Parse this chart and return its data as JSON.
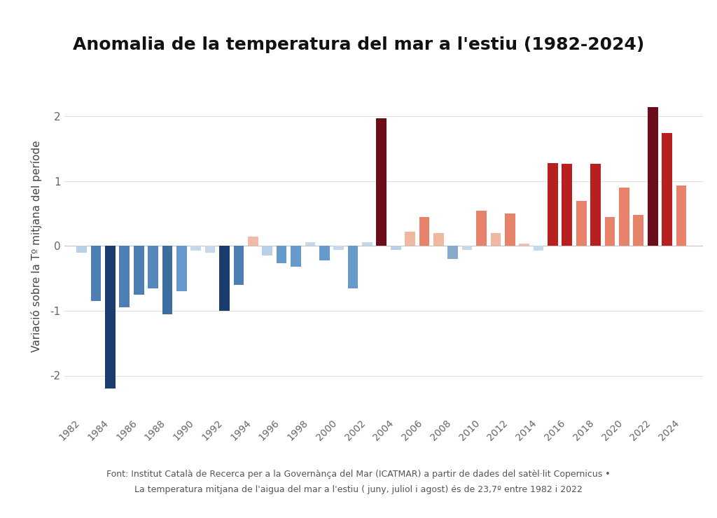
{
  "title": "Anomalia de la temperatura del mar a l'estiu (1982-2024)",
  "ylabel": "Variació sobre la Tº mitjana del període",
  "footnote1": "Font: Institut Català de Recerca per a la Governànça del Mar (ICATMAR) a partir de dades del satèl·lit Copernicus •",
  "footnote2": "La temperatura mitjana de l'aigua del mar a l'estiu ( juny, juliol i agost) és de 23,7º entre 1982 i 2022",
  "years": [
    1982,
    1983,
    1984,
    1985,
    1986,
    1987,
    1988,
    1989,
    1990,
    1991,
    1992,
    1993,
    1994,
    1995,
    1996,
    1997,
    1998,
    1999,
    2000,
    2001,
    2002,
    2003,
    2004,
    2005,
    2006,
    2007,
    2008,
    2009,
    2010,
    2011,
    2012,
    2013,
    2014,
    2015,
    2016,
    2017,
    2018,
    2019,
    2020,
    2021,
    2022,
    2023,
    2024
  ],
  "values": [
    -0.1,
    -0.85,
    -2.2,
    -0.95,
    -0.75,
    -0.65,
    -1.05,
    -0.7,
    -0.07,
    -0.1,
    -1.0,
    -0.6,
    0.15,
    -0.15,
    -0.27,
    -0.32,
    0.06,
    -0.22,
    -0.06,
    -0.65,
    0.06,
    1.97,
    -0.06,
    0.22,
    0.45,
    0.2,
    -0.2,
    -0.06,
    0.55,
    0.2,
    0.5,
    0.04,
    -0.07,
    1.28,
    1.27,
    0.7,
    1.27,
    0.45,
    0.9,
    0.48,
    2.15,
    1.75,
    0.93
  ],
  "colors": [
    "#b8d0e8",
    "#4d7fb5",
    "#1a3d6e",
    "#4d7fb5",
    "#4d7fb5",
    "#5588bb",
    "#3d6ea0",
    "#6699cc",
    "#c5d9ea",
    "#c5d9ea",
    "#1a3d6e",
    "#4d7fb5",
    "#f5b8a8",
    "#b8d0e8",
    "#6699cc",
    "#6699cc",
    "#c5d9ea",
    "#6699cc",
    "#c5d9ea",
    "#6699cc",
    "#c5d9ea",
    "#6b0d1a",
    "#b8d0e8",
    "#f0b8a0",
    "#e8826a",
    "#f0b8a0",
    "#88aacc",
    "#c5d9ea",
    "#e8826a",
    "#f0b8a0",
    "#e8826a",
    "#f0c0b0",
    "#c5d9ea",
    "#b82020",
    "#b82020",
    "#e8826a",
    "#b82020",
    "#e8826a",
    "#e8826a",
    "#e8826a",
    "#6b0d1a",
    "#b82020",
    "#e8826a"
  ],
  "ylim": [
    -2.6,
    2.6
  ],
  "yticks": [
    -2,
    -1,
    0,
    1,
    2
  ],
  "xlim_left": 1980.8,
  "xlim_right": 2025.5,
  "bar_width": 0.72,
  "background_color": "#ffffff",
  "grid_color": "#e0e0e0",
  "title_fontsize": 18,
  "ylabel_fontsize": 11,
  "tick_fontsize": 10,
  "footnote_fontsize": 9
}
